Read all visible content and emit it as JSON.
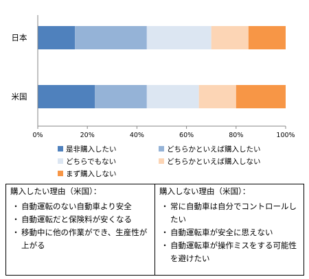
{
  "chart_data": {
    "type": "bar",
    "orientation": "horizontal",
    "stacked": true,
    "percent": true,
    "categories": [
      "日本",
      "米国"
    ],
    "series": [
      {
        "name": "是非購入したい",
        "values": [
          15,
          23
        ],
        "color": "#4f81bd"
      },
      {
        "name": "どちらかといえば購入したい",
        "values": [
          29,
          21
        ],
        "color": "#95b3d7"
      },
      {
        "name": "どちらでもない",
        "values": [
          26,
          21
        ],
        "color": "#dce6f2"
      },
      {
        "name": "どちらかといえば購入しない",
        "values": [
          15,
          15
        ],
        "color": "#fcd5b5"
      },
      {
        "name": "まず購入しない",
        "values": [
          15,
          20
        ],
        "color": "#f79646"
      }
    ],
    "xlim": [
      0,
      100
    ],
    "xticks": [
      "0%",
      "20%",
      "40%",
      "60%",
      "80%",
      "100%"
    ],
    "grid": false,
    "legend": "bottom"
  },
  "reasons": {
    "buy": {
      "title": "購入したい理由（米国）：",
      "items": [
        "自動運転のない自動車より安全",
        "自動運転だと保険料が安くなる",
        "移動中に他の作業ができ、生産性が上がる"
      ]
    },
    "not_buy": {
      "title": "購入しない理由（米国）：",
      "items": [
        "常に自動車は自分でコントロールしたい",
        "自動運転車が安全に思えない",
        "自動運転車が操作ミスをする可能性を避けたい"
      ]
    },
    "bullet": "・"
  }
}
